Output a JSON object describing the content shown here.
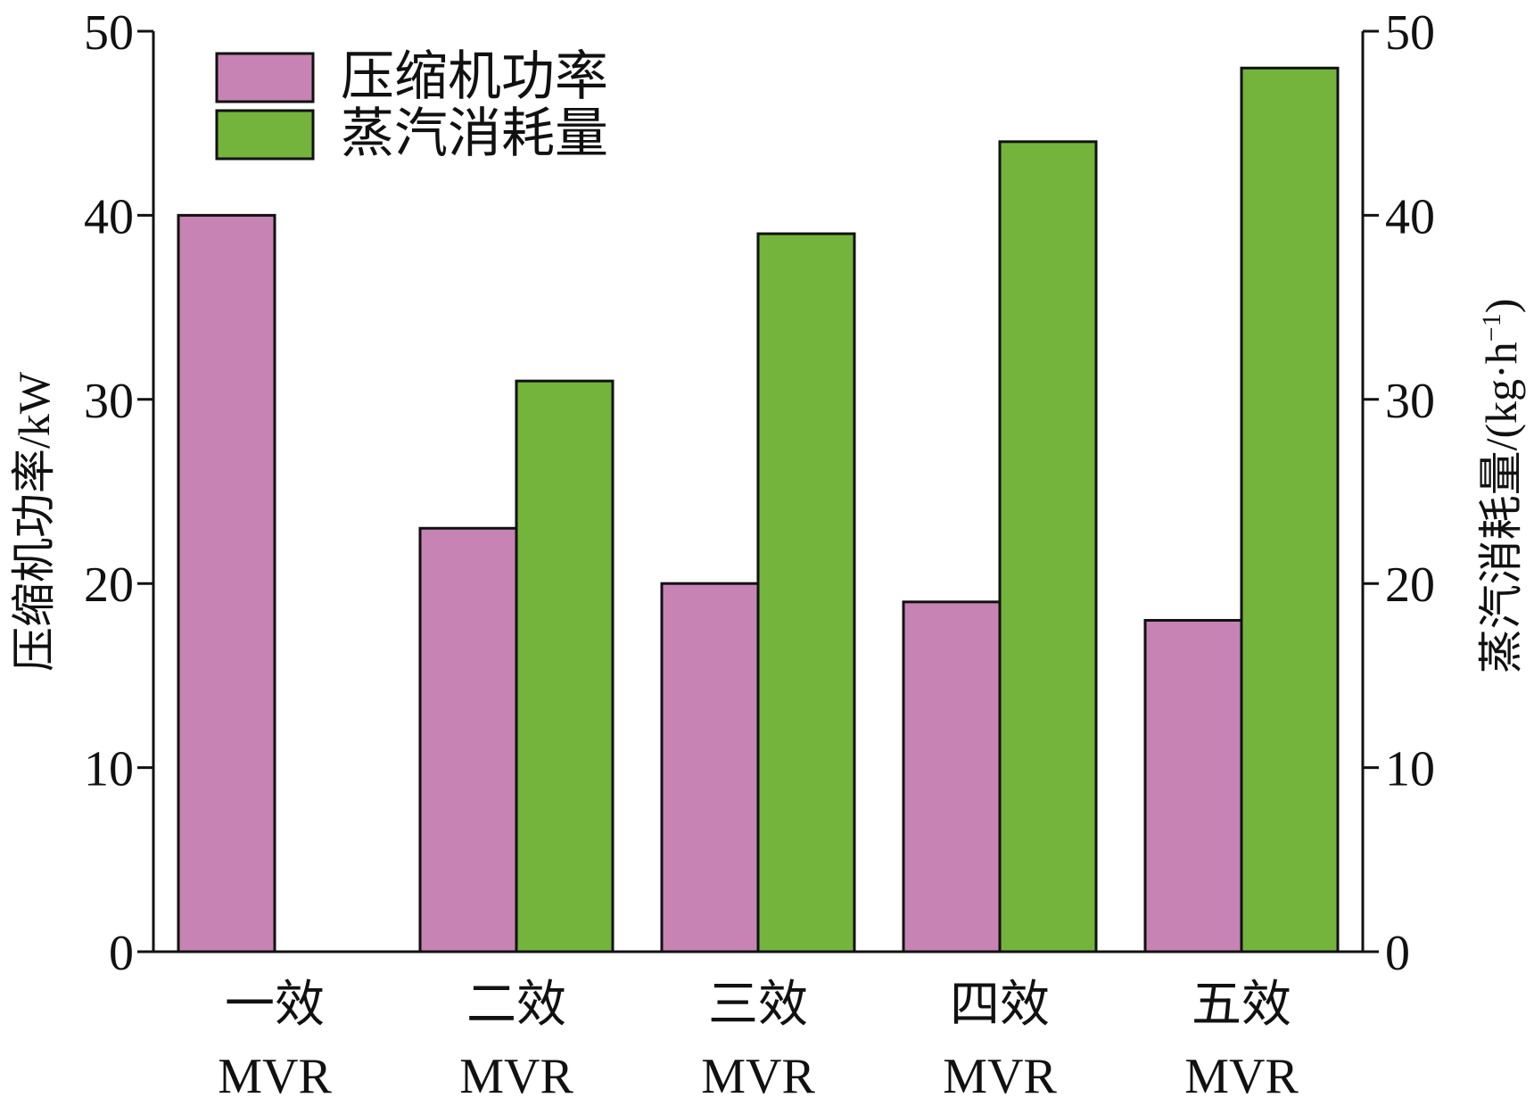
{
  "chart_data": {
    "type": "bar",
    "categories": [
      [
        "一效",
        "MVR"
      ],
      [
        "二效",
        "MVR"
      ],
      [
        "三效",
        "MVR"
      ],
      [
        "四效",
        "MVR"
      ],
      [
        "五效",
        "MVR"
      ]
    ],
    "series": [
      {
        "name": "压缩机功率",
        "axis": "left",
        "color": "#c683b3",
        "values": [
          40,
          23,
          20,
          19,
          18
        ]
      },
      {
        "name": "蒸汽消耗量",
        "axis": "right",
        "color": "#74b43c",
        "values": [
          0,
          31,
          39,
          44,
          48
        ]
      }
    ],
    "ylabel_left": "压缩机功率/kW",
    "ylabel_right": {
      "main": "蒸汽消耗量/(kg·h",
      "sup": "−1",
      "close": ")"
    },
    "ylim_left": [
      0,
      50
    ],
    "ylim_right": [
      0,
      50
    ],
    "yticks": [
      0,
      10,
      20,
      30,
      40,
      50
    ],
    "grid": false,
    "legend_position": "top-left"
  }
}
